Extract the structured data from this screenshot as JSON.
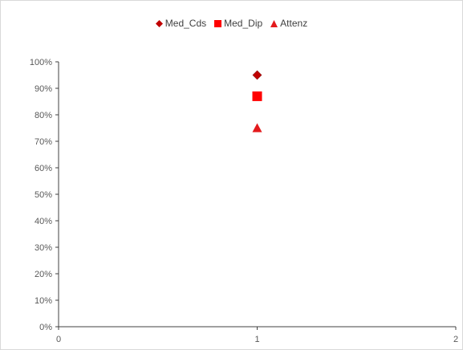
{
  "chart_data": {
    "type": "scatter",
    "title": "",
    "xlabel": "",
    "ylabel": "",
    "xlim": [
      0,
      2
    ],
    "ylim": [
      0,
      1
    ],
    "x_ticks": [
      "0",
      "1",
      "2"
    ],
    "y_ticks": [
      "0%",
      "10%",
      "20%",
      "30%",
      "40%",
      "50%",
      "60%",
      "70%",
      "80%",
      "90%",
      "100%"
    ],
    "grid": false,
    "legend_position": "top",
    "series": [
      {
        "name": "Med_Cds",
        "marker": "diamond",
        "color": "#c00000",
        "points": [
          {
            "x": 1,
            "y": 0.95
          }
        ]
      },
      {
        "name": "Med_Dip",
        "marker": "square",
        "color": "#ff0000",
        "points": [
          {
            "x": 1,
            "y": 0.87
          }
        ]
      },
      {
        "name": "Attenz",
        "marker": "triangle",
        "color": "#e31a1c",
        "points": [
          {
            "x": 1,
            "y": 0.75
          }
        ]
      }
    ]
  }
}
